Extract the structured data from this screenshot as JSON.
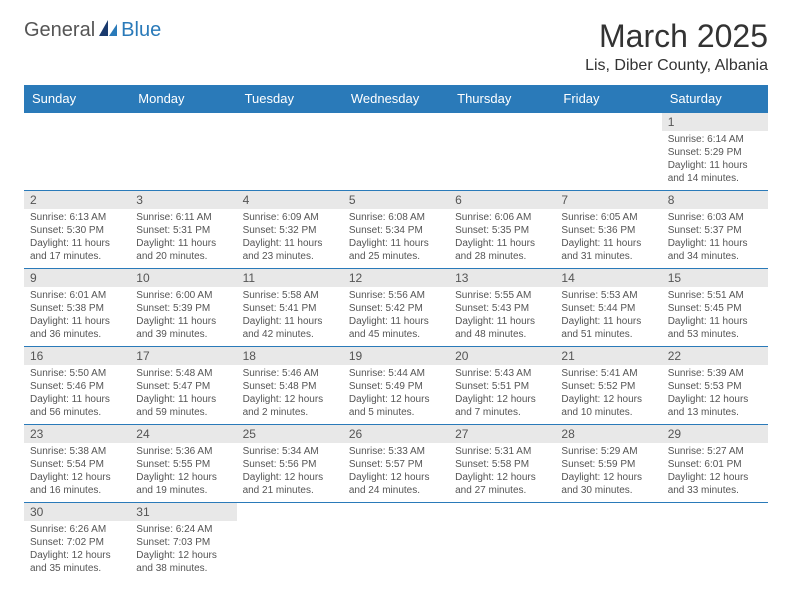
{
  "logo": {
    "part1": "General",
    "part2": "Blue"
  },
  "title": "March 2025",
  "location": "Lis, Diber County, Albania",
  "colors": {
    "header_bg": "#2a7ab9",
    "header_text": "#ffffff",
    "day_bg": "#e8e8e8",
    "text": "#555555",
    "border": "#2a7ab9"
  },
  "weekdays": [
    "Sunday",
    "Monday",
    "Tuesday",
    "Wednesday",
    "Thursday",
    "Friday",
    "Saturday"
  ],
  "weeks": [
    [
      null,
      null,
      null,
      null,
      null,
      null,
      {
        "day": "1",
        "sunrise": "Sunrise: 6:14 AM",
        "sunset": "Sunset: 5:29 PM",
        "daylight": "Daylight: 11 hours and 14 minutes."
      }
    ],
    [
      {
        "day": "2",
        "sunrise": "Sunrise: 6:13 AM",
        "sunset": "Sunset: 5:30 PM",
        "daylight": "Daylight: 11 hours and 17 minutes."
      },
      {
        "day": "3",
        "sunrise": "Sunrise: 6:11 AM",
        "sunset": "Sunset: 5:31 PM",
        "daylight": "Daylight: 11 hours and 20 minutes."
      },
      {
        "day": "4",
        "sunrise": "Sunrise: 6:09 AM",
        "sunset": "Sunset: 5:32 PM",
        "daylight": "Daylight: 11 hours and 23 minutes."
      },
      {
        "day": "5",
        "sunrise": "Sunrise: 6:08 AM",
        "sunset": "Sunset: 5:34 PM",
        "daylight": "Daylight: 11 hours and 25 minutes."
      },
      {
        "day": "6",
        "sunrise": "Sunrise: 6:06 AM",
        "sunset": "Sunset: 5:35 PM",
        "daylight": "Daylight: 11 hours and 28 minutes."
      },
      {
        "day": "7",
        "sunrise": "Sunrise: 6:05 AM",
        "sunset": "Sunset: 5:36 PM",
        "daylight": "Daylight: 11 hours and 31 minutes."
      },
      {
        "day": "8",
        "sunrise": "Sunrise: 6:03 AM",
        "sunset": "Sunset: 5:37 PM",
        "daylight": "Daylight: 11 hours and 34 minutes."
      }
    ],
    [
      {
        "day": "9",
        "sunrise": "Sunrise: 6:01 AM",
        "sunset": "Sunset: 5:38 PM",
        "daylight": "Daylight: 11 hours and 36 minutes."
      },
      {
        "day": "10",
        "sunrise": "Sunrise: 6:00 AM",
        "sunset": "Sunset: 5:39 PM",
        "daylight": "Daylight: 11 hours and 39 minutes."
      },
      {
        "day": "11",
        "sunrise": "Sunrise: 5:58 AM",
        "sunset": "Sunset: 5:41 PM",
        "daylight": "Daylight: 11 hours and 42 minutes."
      },
      {
        "day": "12",
        "sunrise": "Sunrise: 5:56 AM",
        "sunset": "Sunset: 5:42 PM",
        "daylight": "Daylight: 11 hours and 45 minutes."
      },
      {
        "day": "13",
        "sunrise": "Sunrise: 5:55 AM",
        "sunset": "Sunset: 5:43 PM",
        "daylight": "Daylight: 11 hours and 48 minutes."
      },
      {
        "day": "14",
        "sunrise": "Sunrise: 5:53 AM",
        "sunset": "Sunset: 5:44 PM",
        "daylight": "Daylight: 11 hours and 51 minutes."
      },
      {
        "day": "15",
        "sunrise": "Sunrise: 5:51 AM",
        "sunset": "Sunset: 5:45 PM",
        "daylight": "Daylight: 11 hours and 53 minutes."
      }
    ],
    [
      {
        "day": "16",
        "sunrise": "Sunrise: 5:50 AM",
        "sunset": "Sunset: 5:46 PM",
        "daylight": "Daylight: 11 hours and 56 minutes."
      },
      {
        "day": "17",
        "sunrise": "Sunrise: 5:48 AM",
        "sunset": "Sunset: 5:47 PM",
        "daylight": "Daylight: 11 hours and 59 minutes."
      },
      {
        "day": "18",
        "sunrise": "Sunrise: 5:46 AM",
        "sunset": "Sunset: 5:48 PM",
        "daylight": "Daylight: 12 hours and 2 minutes."
      },
      {
        "day": "19",
        "sunrise": "Sunrise: 5:44 AM",
        "sunset": "Sunset: 5:49 PM",
        "daylight": "Daylight: 12 hours and 5 minutes."
      },
      {
        "day": "20",
        "sunrise": "Sunrise: 5:43 AM",
        "sunset": "Sunset: 5:51 PM",
        "daylight": "Daylight: 12 hours and 7 minutes."
      },
      {
        "day": "21",
        "sunrise": "Sunrise: 5:41 AM",
        "sunset": "Sunset: 5:52 PM",
        "daylight": "Daylight: 12 hours and 10 minutes."
      },
      {
        "day": "22",
        "sunrise": "Sunrise: 5:39 AM",
        "sunset": "Sunset: 5:53 PM",
        "daylight": "Daylight: 12 hours and 13 minutes."
      }
    ],
    [
      {
        "day": "23",
        "sunrise": "Sunrise: 5:38 AM",
        "sunset": "Sunset: 5:54 PM",
        "daylight": "Daylight: 12 hours and 16 minutes."
      },
      {
        "day": "24",
        "sunrise": "Sunrise: 5:36 AM",
        "sunset": "Sunset: 5:55 PM",
        "daylight": "Daylight: 12 hours and 19 minutes."
      },
      {
        "day": "25",
        "sunrise": "Sunrise: 5:34 AM",
        "sunset": "Sunset: 5:56 PM",
        "daylight": "Daylight: 12 hours and 21 minutes."
      },
      {
        "day": "26",
        "sunrise": "Sunrise: 5:33 AM",
        "sunset": "Sunset: 5:57 PM",
        "daylight": "Daylight: 12 hours and 24 minutes."
      },
      {
        "day": "27",
        "sunrise": "Sunrise: 5:31 AM",
        "sunset": "Sunset: 5:58 PM",
        "daylight": "Daylight: 12 hours and 27 minutes."
      },
      {
        "day": "28",
        "sunrise": "Sunrise: 5:29 AM",
        "sunset": "Sunset: 5:59 PM",
        "daylight": "Daylight: 12 hours and 30 minutes."
      },
      {
        "day": "29",
        "sunrise": "Sunrise: 5:27 AM",
        "sunset": "Sunset: 6:01 PM",
        "daylight": "Daylight: 12 hours and 33 minutes."
      }
    ],
    [
      {
        "day": "30",
        "sunrise": "Sunrise: 6:26 AM",
        "sunset": "Sunset: 7:02 PM",
        "daylight": "Daylight: 12 hours and 35 minutes."
      },
      {
        "day": "31",
        "sunrise": "Sunrise: 6:24 AM",
        "sunset": "Sunset: 7:03 PM",
        "daylight": "Daylight: 12 hours and 38 minutes."
      },
      null,
      null,
      null,
      null,
      null
    ]
  ]
}
